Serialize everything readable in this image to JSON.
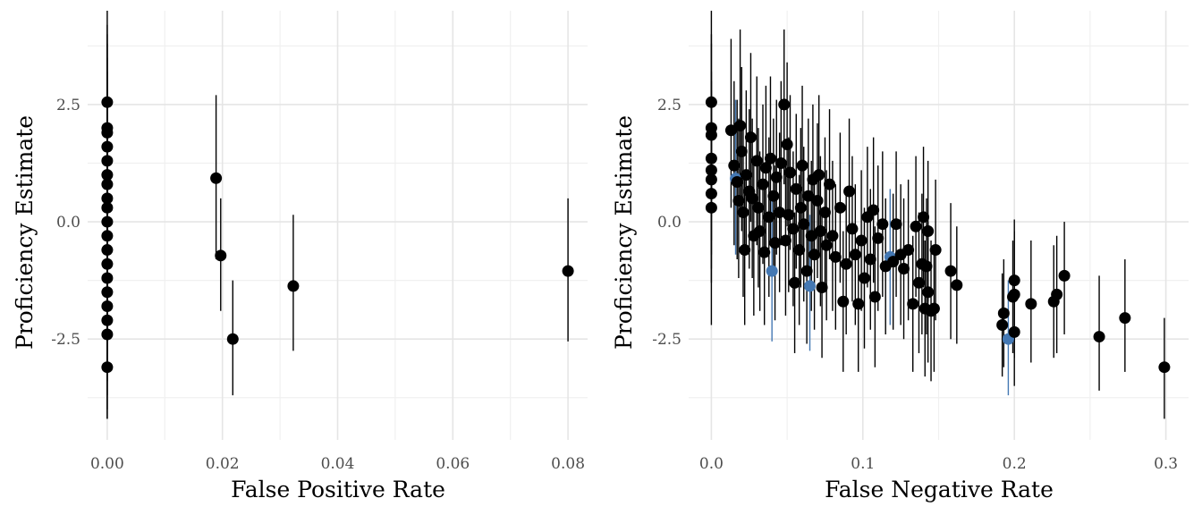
{
  "colors": {
    "background": "#ffffff",
    "grid_major": "#e5e5e5",
    "grid_minor": "#f0f0f0",
    "point": "#000000",
    "highlight": "#4478b3",
    "tick_text": "#4d4d4d"
  },
  "chart_data": [
    {
      "type": "scatter",
      "title": "",
      "xlabel": "False Positive Rate",
      "ylabel": "Proficiency Estimate",
      "xlim": [
        -0.0034,
        0.0834
      ],
      "ylim": [
        -4.65,
        4.5
      ],
      "x_ticks": [
        0.0,
        0.02,
        0.04,
        0.06,
        0.08
      ],
      "x_tick_labels": [
        "0.00",
        "0.02",
        "0.04",
        "0.06",
        "0.08"
      ],
      "y_ticks": [
        -2.5,
        0.0,
        2.5
      ],
      "y_tick_labels": [
        "-2.5",
        "0.0",
        "2.5"
      ],
      "grid": true,
      "error_bars": true,
      "points": [
        {
          "x": 0.0,
          "y": 2.55,
          "lo": 0.5,
          "hi": 4.5
        },
        {
          "x": 0.0,
          "y": 2.0,
          "lo": 0.1,
          "hi": 4.2
        },
        {
          "x": 0.0,
          "y": 1.9,
          "lo": 0.0,
          "hi": 4.0
        },
        {
          "x": 0.0,
          "y": 1.6,
          "lo": -0.3,
          "hi": 3.8
        },
        {
          "x": 0.0,
          "y": 1.3,
          "lo": -0.6,
          "hi": 3.5
        },
        {
          "x": 0.0,
          "y": 1.0,
          "lo": -0.9,
          "hi": 3.2
        },
        {
          "x": 0.0,
          "y": 0.8,
          "lo": -1.1,
          "hi": 3.0
        },
        {
          "x": 0.0,
          "y": 0.5,
          "lo": -1.4,
          "hi": 2.6
        },
        {
          "x": 0.0,
          "y": 0.3,
          "lo": -1.6,
          "hi": 2.4
        },
        {
          "x": 0.0,
          "y": 0.0,
          "lo": -1.9,
          "hi": 2.1
        },
        {
          "x": 0.0,
          "y": -0.3,
          "lo": -2.2,
          "hi": 1.8
        },
        {
          "x": 0.0,
          "y": -0.6,
          "lo": -2.5,
          "hi": 1.5
        },
        {
          "x": 0.0,
          "y": -0.9,
          "lo": -2.8,
          "hi": 1.2
        },
        {
          "x": 0.0,
          "y": -1.2,
          "lo": -3.1,
          "hi": 0.9
        },
        {
          "x": 0.0,
          "y": -1.5,
          "lo": -3.4,
          "hi": 0.6
        },
        {
          "x": 0.0,
          "y": -1.8,
          "lo": -3.7,
          "hi": 0.3
        },
        {
          "x": 0.0,
          "y": -2.1,
          "lo": -4.0,
          "hi": 0.0
        },
        {
          "x": 0.0,
          "y": -2.4,
          "lo": -4.2,
          "hi": -0.4
        },
        {
          "x": 0.0,
          "y": -3.1,
          "lo": -4.2,
          "hi": -1.9
        },
        {
          "x": 0.0189,
          "y": 0.93,
          "lo": -0.8,
          "hi": 2.7
        },
        {
          "x": 0.0197,
          "y": -0.72,
          "lo": -1.9,
          "hi": 0.5
        },
        {
          "x": 0.0218,
          "y": -2.5,
          "lo": -3.7,
          "hi": -1.25
        },
        {
          "x": 0.0323,
          "y": -1.37,
          "lo": -2.75,
          "hi": 0.15
        },
        {
          "x": 0.08,
          "y": -1.05,
          "lo": -2.55,
          "hi": 0.5
        }
      ]
    },
    {
      "type": "scatter",
      "title": "",
      "xlabel": "False Negative Rate",
      "ylabel": "Proficiency Estimate",
      "xlim": [
        -0.015,
        0.315
      ],
      "ylim": [
        -4.65,
        4.5
      ],
      "x_ticks": [
        0.0,
        0.1,
        0.2,
        0.3
      ],
      "x_tick_labels": [
        "0.0",
        "0.1",
        "0.2",
        "0.3"
      ],
      "y_ticks": [
        -2.5,
        0.0,
        2.5
      ],
      "y_tick_labels": [
        "-2.5",
        "0.0",
        "2.5"
      ],
      "grid": true,
      "error_bars": true,
      "points": [
        {
          "x": 0.0,
          "y": 2.55,
          "lo": 0.5,
          "hi": 4.5
        },
        {
          "x": 0.0,
          "y": 2.0,
          "lo": 0.2,
          "hi": 4.0
        },
        {
          "x": 0.0,
          "y": 1.85,
          "lo": 0.1,
          "hi": 3.8
        },
        {
          "x": 0.0,
          "y": 1.35,
          "lo": -0.4,
          "hi": 3.2
        },
        {
          "x": 0.0,
          "y": 1.1,
          "lo": -0.7,
          "hi": 3.0
        },
        {
          "x": 0.0,
          "y": 0.9,
          "lo": -1.0,
          "hi": 2.8
        },
        {
          "x": 0.0,
          "y": 0.6,
          "lo": -1.3,
          "hi": 2.5
        },
        {
          "x": 0.0,
          "y": 0.3,
          "lo": -2.2,
          "hi": 2.2
        },
        {
          "x": 0.013,
          "y": 1.95,
          "lo": 0.3,
          "hi": 3.9
        },
        {
          "x": 0.015,
          "y": 1.2,
          "lo": -0.5,
          "hi": 3.0
        },
        {
          "x": 0.017,
          "y": 0.85,
          "lo": -0.8,
          "hi": 2.6
        },
        {
          "x": 0.018,
          "y": 0.45,
          "lo": -1.2,
          "hi": 2.2
        },
        {
          "x": 0.019,
          "y": 2.05,
          "lo": 0.3,
          "hi": 4.1
        },
        {
          "x": 0.02,
          "y": 1.5,
          "lo": -0.2,
          "hi": 3.3
        },
        {
          "x": 0.021,
          "y": 0.2,
          "lo": -1.6,
          "hi": 2.0
        },
        {
          "x": 0.022,
          "y": -0.6,
          "lo": -2.2,
          "hi": 1.1
        },
        {
          "x": 0.023,
          "y": 1.0,
          "lo": -0.7,
          "hi": 2.8
        },
        {
          "x": 0.025,
          "y": 0.65,
          "lo": -1.0,
          "hi": 2.4
        },
        {
          "x": 0.026,
          "y": 1.8,
          "lo": 0.0,
          "hi": 3.6
        },
        {
          "x": 0.027,
          "y": 0.5,
          "lo": -1.2,
          "hi": 2.2
        },
        {
          "x": 0.028,
          "y": -0.3,
          "lo": -2.0,
          "hi": 1.4
        },
        {
          "x": 0.03,
          "y": 1.3,
          "lo": -0.5,
          "hi": 3.1
        },
        {
          "x": 0.031,
          "y": 0.3,
          "lo": -1.4,
          "hi": 2.0
        },
        {
          "x": 0.032,
          "y": -0.2,
          "lo": -1.9,
          "hi": 1.5
        },
        {
          "x": 0.034,
          "y": 0.8,
          "lo": -0.9,
          "hi": 2.5
        },
        {
          "x": 0.035,
          "y": -0.65,
          "lo": -2.2,
          "hi": 0.9
        },
        {
          "x": 0.036,
          "y": 1.15,
          "lo": -0.6,
          "hi": 2.9
        },
        {
          "x": 0.038,
          "y": 0.1,
          "lo": -1.6,
          "hi": 1.8
        },
        {
          "x": 0.039,
          "y": 1.35,
          "lo": -0.4,
          "hi": 3.1
        },
        {
          "x": 0.041,
          "y": 0.55,
          "lo": -1.1,
          "hi": 2.2
        },
        {
          "x": 0.042,
          "y": -0.45,
          "lo": -2.1,
          "hi": 1.2
        },
        {
          "x": 0.043,
          "y": 0.95,
          "lo": -0.7,
          "hi": 2.6
        },
        {
          "x": 0.045,
          "y": 0.2,
          "lo": -1.5,
          "hi": 1.9
        },
        {
          "x": 0.046,
          "y": 1.25,
          "lo": -0.5,
          "hi": 3.0
        },
        {
          "x": 0.048,
          "y": 2.5,
          "lo": 0.8,
          "hi": 4.1
        },
        {
          "x": 0.049,
          "y": -0.4,
          "lo": -2.0,
          "hi": 1.3
        },
        {
          "x": 0.05,
          "y": 1.65,
          "lo": -0.1,
          "hi": 3.4
        },
        {
          "x": 0.051,
          "y": 0.15,
          "lo": -1.5,
          "hi": 1.8
        },
        {
          "x": 0.052,
          "y": 1.05,
          "lo": -0.6,
          "hi": 2.7
        },
        {
          "x": 0.054,
          "y": -0.15,
          "lo": -1.8,
          "hi": 1.5
        },
        {
          "x": 0.055,
          "y": -1.3,
          "lo": -2.8,
          "hi": 0.2
        },
        {
          "x": 0.056,
          "y": 0.7,
          "lo": -1.0,
          "hi": 2.3
        },
        {
          "x": 0.058,
          "y": -0.6,
          "lo": -2.2,
          "hi": 1.0
        },
        {
          "x": 0.059,
          "y": 0.3,
          "lo": -1.4,
          "hi": 2.0
        },
        {
          "x": 0.06,
          "y": 1.2,
          "lo": -0.5,
          "hi": 2.9
        },
        {
          "x": 0.061,
          "y": -0.05,
          "lo": -1.7,
          "hi": 1.6
        },
        {
          "x": 0.063,
          "y": -1.05,
          "lo": -2.6,
          "hi": 0.5
        },
        {
          "x": 0.064,
          "y": 0.55,
          "lo": -1.1,
          "hi": 2.2
        },
        {
          "x": 0.066,
          "y": -0.3,
          "lo": -1.9,
          "hi": 1.3
        },
        {
          "x": 0.067,
          "y": 0.9,
          "lo": -0.7,
          "hi": 2.5
        },
        {
          "x": 0.068,
          "y": -0.7,
          "lo": -2.3,
          "hi": 0.9
        },
        {
          "x": 0.07,
          "y": 0.45,
          "lo": -1.2,
          "hi": 2.1
        },
        {
          "x": 0.071,
          "y": 1.0,
          "lo": -0.7,
          "hi": 2.7
        },
        {
          "x": 0.072,
          "y": -0.2,
          "lo": -1.8,
          "hi": 1.4
        },
        {
          "x": 0.073,
          "y": -1.4,
          "lo": -2.9,
          "hi": 0.1
        },
        {
          "x": 0.075,
          "y": 0.2,
          "lo": -1.4,
          "hi": 1.8
        },
        {
          "x": 0.076,
          "y": -0.5,
          "lo": -2.1,
          "hi": 1.1
        },
        {
          "x": 0.078,
          "y": 0.8,
          "lo": -0.8,
          "hi": 2.4
        },
        {
          "x": 0.08,
          "y": -0.3,
          "lo": -1.9,
          "hi": 1.3
        },
        {
          "x": 0.082,
          "y": -0.75,
          "lo": -2.3,
          "hi": 0.8
        },
        {
          "x": 0.085,
          "y": 0.3,
          "lo": -1.3,
          "hi": 1.9
        },
        {
          "x": 0.087,
          "y": -1.7,
          "lo": -3.2,
          "hi": -0.2
        },
        {
          "x": 0.089,
          "y": -0.9,
          "lo": -2.4,
          "hi": 0.6
        },
        {
          "x": 0.091,
          "y": 0.65,
          "lo": -0.9,
          "hi": 2.2
        },
        {
          "x": 0.093,
          "y": -0.15,
          "lo": -1.7,
          "hi": 1.4
        },
        {
          "x": 0.095,
          "y": -0.7,
          "lo": -2.2,
          "hi": 0.8
        },
        {
          "x": 0.097,
          "y": -1.75,
          "lo": -3.2,
          "hi": -0.3
        },
        {
          "x": 0.099,
          "y": -0.4,
          "lo": -1.9,
          "hi": 1.1
        },
        {
          "x": 0.101,
          "y": -1.2,
          "lo": -2.7,
          "hi": 0.3
        },
        {
          "x": 0.103,
          "y": 0.1,
          "lo": -1.4,
          "hi": 1.6
        },
        {
          "x": 0.105,
          "y": -0.8,
          "lo": -2.3,
          "hi": 0.7
        },
        {
          "x": 0.107,
          "y": 0.25,
          "lo": -1.3,
          "hi": 1.8
        },
        {
          "x": 0.108,
          "y": -1.6,
          "lo": -3.1,
          "hi": -0.1
        },
        {
          "x": 0.11,
          "y": -0.35,
          "lo": -1.9,
          "hi": 1.2
        },
        {
          "x": 0.113,
          "y": -0.05,
          "lo": -1.6,
          "hi": 1.5
        },
        {
          "x": 0.115,
          "y": -0.95,
          "lo": -2.4,
          "hi": 0.5
        },
        {
          "x": 0.118,
          "y": -0.75,
          "lo": -2.2,
          "hi": 0.7,
          "highlight": true
        },
        {
          "x": 0.12,
          "y": -0.85,
          "lo": -2.3,
          "hi": 0.6
        },
        {
          "x": 0.122,
          "y": -0.05,
          "lo": -1.6,
          "hi": 1.5
        },
        {
          "x": 0.125,
          "y": -0.7,
          "lo": -2.2,
          "hi": 0.8
        },
        {
          "x": 0.127,
          "y": -1.0,
          "lo": -2.5,
          "hi": 0.5
        },
        {
          "x": 0.13,
          "y": -0.6,
          "lo": -2.1,
          "hi": 0.9
        },
        {
          "x": 0.133,
          "y": -1.75,
          "lo": -3.2,
          "hi": -0.3
        },
        {
          "x": 0.135,
          "y": -0.1,
          "lo": -1.6,
          "hi": 1.4
        },
        {
          "x": 0.137,
          "y": -1.3,
          "lo": -2.8,
          "hi": 0.2
        },
        {
          "x": 0.139,
          "y": -0.9,
          "lo": -2.4,
          "hi": 0.6
        },
        {
          "x": 0.14,
          "y": 0.1,
          "lo": -1.4,
          "hi": 1.6
        },
        {
          "x": 0.141,
          "y": -1.85,
          "lo": -3.3,
          "hi": -0.4
        },
        {
          "x": 0.142,
          "y": -0.95,
          "lo": -2.4,
          "hi": 0.5
        },
        {
          "x": 0.143,
          "y": -1.5,
          "lo": -3.0,
          "hi": 0.0
        },
        {
          "x": 0.143,
          "y": -0.2,
          "lo": -1.7,
          "hi": 1.3
        },
        {
          "x": 0.145,
          "y": -1.9,
          "lo": -3.4,
          "hi": -0.4
        },
        {
          "x": 0.147,
          "y": -1.85,
          "lo": -3.2,
          "hi": -0.5
        },
        {
          "x": 0.148,
          "y": -0.6,
          "lo": -2.1,
          "hi": 0.9
        },
        {
          "x": 0.158,
          "y": -1.05,
          "lo": -2.5,
          "hi": 0.4
        },
        {
          "x": 0.162,
          "y": -1.35,
          "lo": -2.6,
          "hi": -0.1
        },
        {
          "x": 0.016,
          "y": 0.92,
          "lo": -0.7,
          "hi": 2.6,
          "highlight": true
        },
        {
          "x": 0.04,
          "y": -1.05,
          "lo": -2.55,
          "hi": 0.5,
          "highlight": true
        },
        {
          "x": 0.065,
          "y": -1.37,
          "lo": -2.75,
          "hi": 0.15,
          "highlight": true
        },
        {
          "x": 0.192,
          "y": -2.2,
          "lo": -3.3,
          "hi": -1.1
        },
        {
          "x": 0.193,
          "y": -1.95,
          "lo": -3.1,
          "hi": -0.8
        },
        {
          "x": 0.196,
          "y": -2.5,
          "lo": -3.7,
          "hi": -1.25,
          "highlight": true
        },
        {
          "x": 0.199,
          "y": -1.6,
          "lo": -2.8,
          "hi": -0.4
        },
        {
          "x": 0.2,
          "y": -2.35,
          "lo": -3.5,
          "hi": -1.2
        },
        {
          "x": 0.2,
          "y": -1.25,
          "lo": -2.5,
          "hi": 0.05
        },
        {
          "x": 0.2,
          "y": -1.55,
          "lo": -2.9,
          "hi": -0.2
        },
        {
          "x": 0.211,
          "y": -1.75,
          "lo": -3.0,
          "hi": -0.4
        },
        {
          "x": 0.226,
          "y": -1.7,
          "lo": -2.9,
          "hi": -0.5
        },
        {
          "x": 0.228,
          "y": -1.55,
          "lo": -2.8,
          "hi": -0.3
        },
        {
          "x": 0.233,
          "y": -1.15,
          "lo": -2.4,
          "hi": 0.0
        },
        {
          "x": 0.256,
          "y": -2.45,
          "lo": -3.6,
          "hi": -1.15
        },
        {
          "x": 0.273,
          "y": -2.05,
          "lo": -3.2,
          "hi": -0.8
        },
        {
          "x": 0.299,
          "y": -3.1,
          "lo": -4.2,
          "hi": -2.05
        }
      ]
    }
  ]
}
